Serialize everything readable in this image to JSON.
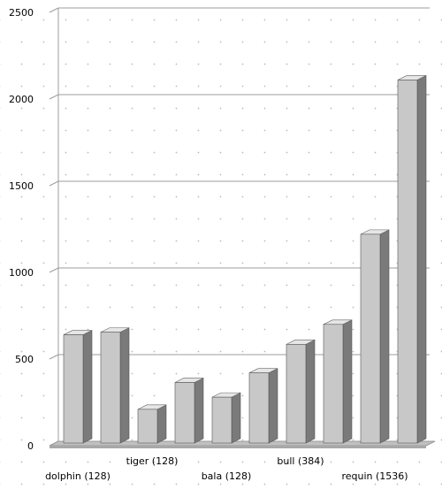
{
  "chart_data": {
    "type": "bar",
    "style": "3d",
    "title": "",
    "xlabel": "",
    "ylabel": "",
    "ylim": [
      0,
      2500
    ],
    "yticks": [
      "0",
      "500",
      "1000",
      "1500",
      "2000",
      "2500"
    ],
    "categories": [
      "dolphin (128)",
      "",
      "tiger (128)",
      "",
      "bala (128)",
      "",
      "bull (384)",
      "",
      "requin (1536)",
      ""
    ],
    "values": [
      640,
      655,
      210,
      365,
      280,
      420,
      585,
      700,
      1220,
      2110
    ],
    "grid": true,
    "legend": "none",
    "colors": {
      "bar_front": "#c8c8c8",
      "bar_side": "#7a7a7a",
      "bar_top": "#e6e6e6",
      "gridline": "#9c9c9c",
      "floor": "#c0c0c0"
    }
  }
}
